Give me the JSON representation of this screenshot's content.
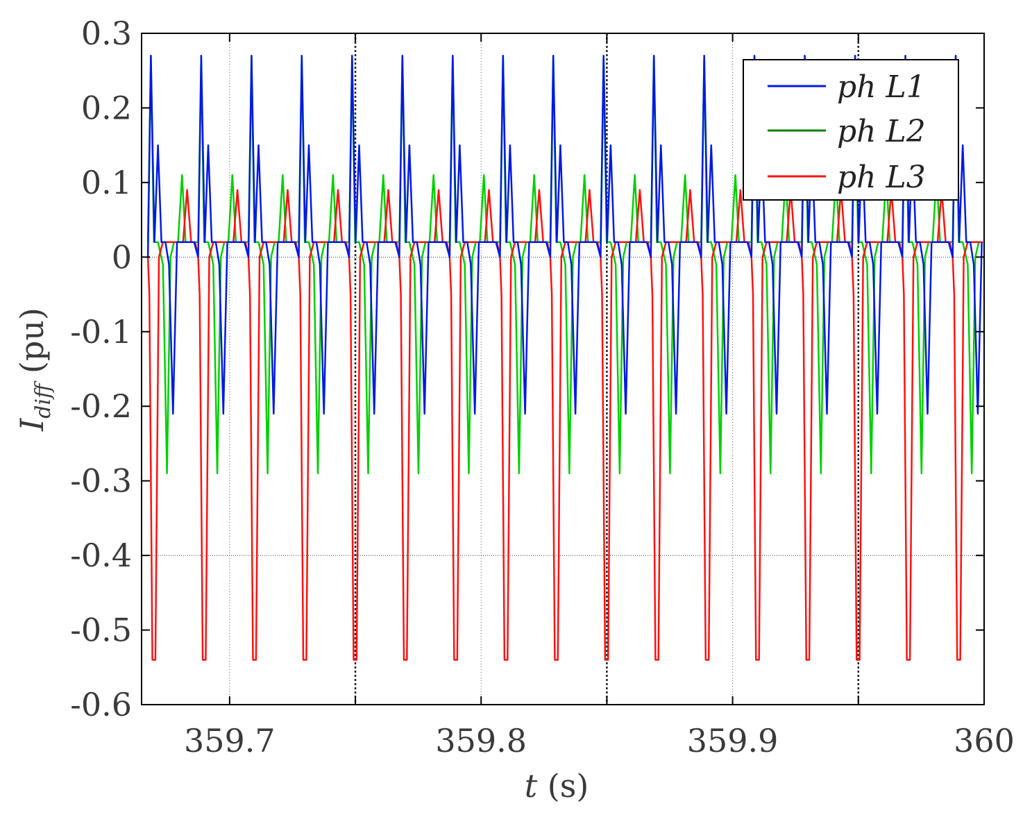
{
  "chart_data": {
    "type": "line",
    "title": "",
    "xlabel_main": "t",
    "xlabel_unit": " (s)",
    "ylabel_main": "I",
    "ylabel_sub": "diff",
    "ylabel_unit": " (pu)",
    "xlim": [
      359.665,
      360.0
    ],
    "ylim": [
      -0.6,
      0.3
    ],
    "xticks": [
      359.7,
      359.8,
      359.9,
      360
    ],
    "xtick_labels": [
      "359.7",
      "359.8",
      "359.9",
      "360"
    ],
    "yticks": [
      0.3,
      0.2,
      0.1,
      0,
      -0.1,
      -0.2,
      -0.3,
      -0.4,
      -0.5,
      -0.6
    ],
    "ytick_labels": [
      "0.3",
      "0.2",
      "0.1",
      "0",
      "-0.1",
      "-0.2",
      "-0.3",
      "-0.4",
      "-0.5",
      "-0.6"
    ],
    "grid_lines": {
      "vertical_dotted": [
        359.7,
        359.75,
        359.8,
        359.85,
        359.9,
        359.95
      ],
      "horizontal_dotted": [
        0,
        -0.4
      ]
    },
    "period": 0.02,
    "start_time": 359.6675,
    "legend_position": "top-right",
    "series": [
      {
        "name": "ph L1",
        "color": "#0019e6",
        "shape_note": "per-period waveform: peaks 0.27, 0.15, troughs -0.21",
        "cycle_phases": [
          0,
          0.06,
          0.13,
          0.2,
          0.27,
          0.35,
          0.42,
          0.5,
          0.58,
          0.65,
          0.72,
          0.78,
          0.85,
          0.92,
          1.0
        ],
        "cycle_values": [
          0.0,
          0.27,
          0.02,
          0.15,
          0.02,
          0.02,
          -0.01,
          -0.21,
          0.02,
          0.02,
          0.02,
          0.02,
          0.02,
          0.02,
          0.0
        ]
      },
      {
        "name": "ph L2",
        "color": "#00d000",
        "shape_note": "per-period waveform: peaks 0.27 (coincident with L1), 0.11, troughs -0.29",
        "cycle_phases": [
          0,
          0.06,
          0.12,
          0.2,
          0.3,
          0.38,
          0.45,
          0.52,
          0.6,
          0.68,
          0.75,
          0.82,
          0.9,
          0.96,
          1.0
        ],
        "cycle_values": [
          0.02,
          0.27,
          0.02,
          0.02,
          -0.01,
          -0.29,
          0.0,
          0.02,
          0.02,
          0.11,
          0.02,
          0.02,
          0.02,
          0.02,
          0.02
        ]
      },
      {
        "name": "ph L3",
        "color": "#ff1010",
        "shape_note": "per-period waveform: peaks 0.09, troughs -0.54",
        "cycle_phases": [
          0,
          0.03,
          0.09,
          0.15,
          0.22,
          0.3,
          0.4,
          0.5,
          0.6,
          0.7,
          0.78,
          0.86,
          0.94,
          1.0
        ],
        "cycle_values": [
          0.0,
          -0.05,
          -0.54,
          -0.54,
          0.0,
          0.02,
          0.02,
          0.02,
          0.02,
          0.02,
          0.09,
          0.02,
          0.02,
          0.0
        ]
      }
    ]
  }
}
